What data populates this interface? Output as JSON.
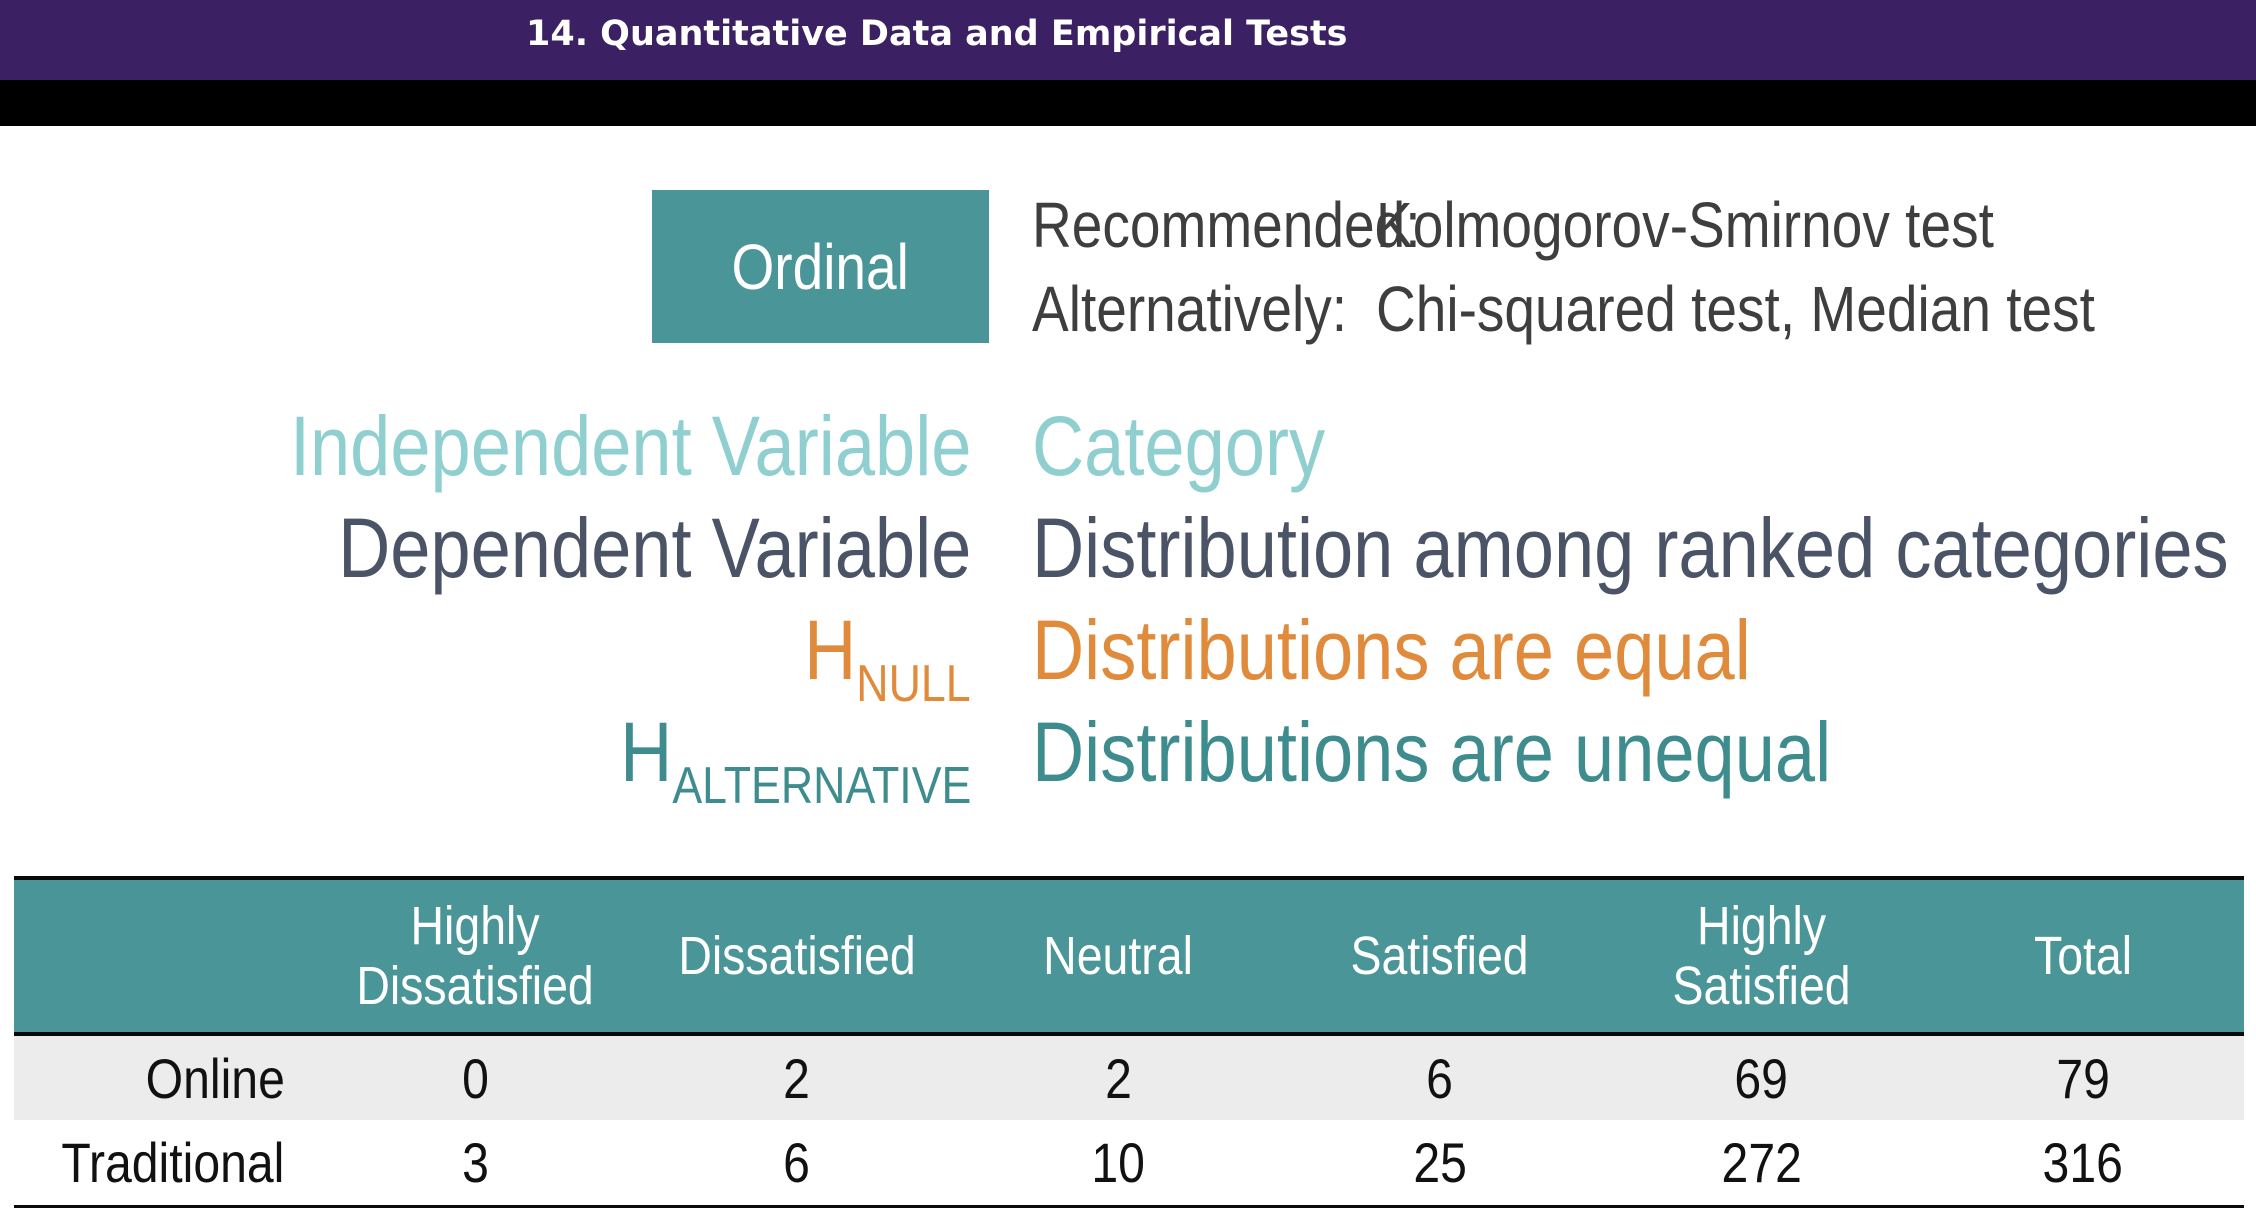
{
  "header": {
    "title": "14. Quantitative Data and Empirical Tests"
  },
  "slide": {
    "scale_type": "Ordinal",
    "recommended_label": "Recommended:",
    "recommended_value": "Kolmogorov-Smirnov test",
    "alternatively_label": "Alternatively:",
    "alternatively_value": "Chi-squared test, Median test",
    "independent_label": "Independent Variable",
    "independent_value": "Category",
    "dependent_label": "Dependent Variable",
    "dependent_value": "Distribution among ranked categories",
    "hnull_main": "H",
    "hnull_sub": "NULL",
    "hnull_value": "Distributions are equal",
    "halt_main": "H",
    "halt_sub": "ALTERNATIVE",
    "halt_value": "Distributions are unequal"
  },
  "table": {
    "columns": [
      "",
      [
        "Highly",
        "Dissatisfied"
      ],
      [
        "Dissatisfied"
      ],
      [
        "Neutral"
      ],
      [
        "Satisfied"
      ],
      [
        "Highly",
        "Satisfied"
      ],
      [
        "Total"
      ]
    ],
    "rows": [
      {
        "label": "Online",
        "values": [
          "0",
          "2",
          "2",
          "6",
          "69",
          "79"
        ]
      },
      {
        "label": "Traditional",
        "values": [
          "3",
          "6",
          "10",
          "25",
          "272",
          "316"
        ]
      }
    ]
  },
  "colors": {
    "header_bar": "#3b2163",
    "teal": "#4a9598",
    "light_teal": "#8fcfcf",
    "slate": "#4b5366",
    "orange": "#e08a3c",
    "dark_teal": "#3f8c8f"
  }
}
